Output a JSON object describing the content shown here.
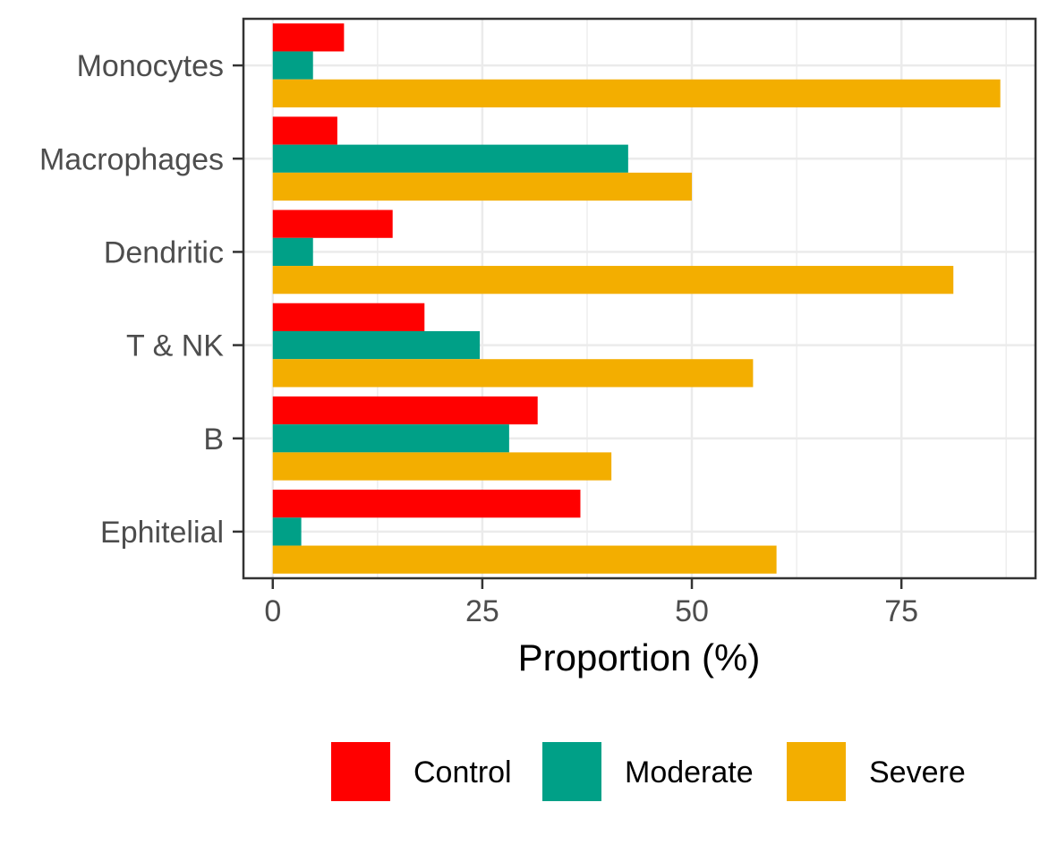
{
  "chart_data": {
    "type": "bar",
    "orientation": "horizontal",
    "title": "",
    "xlabel": "Proportion (%)",
    "ylabel": "",
    "xlim": [
      -3.5,
      91
    ],
    "x_ticks": [
      0,
      25,
      50,
      75
    ],
    "categories": [
      "Monocytes",
      "Macrophages",
      "Dendritic",
      "T & NK",
      "B",
      "Ephitelial"
    ],
    "series": [
      {
        "name": "Control",
        "color": "#ff0000",
        "values": [
          8.5,
          7.7,
          14.3,
          18.1,
          31.6,
          36.7
        ]
      },
      {
        "name": "Moderate",
        "color": "#00a087",
        "values": [
          4.8,
          42.4,
          4.8,
          24.7,
          28.2,
          3.4
        ]
      },
      {
        "name": "Severe",
        "color": "#f3ae00",
        "values": [
          86.8,
          50.0,
          81.2,
          57.3,
          40.4,
          60.1
        ]
      }
    ],
    "grid": true,
    "legend_position": "bottom"
  }
}
